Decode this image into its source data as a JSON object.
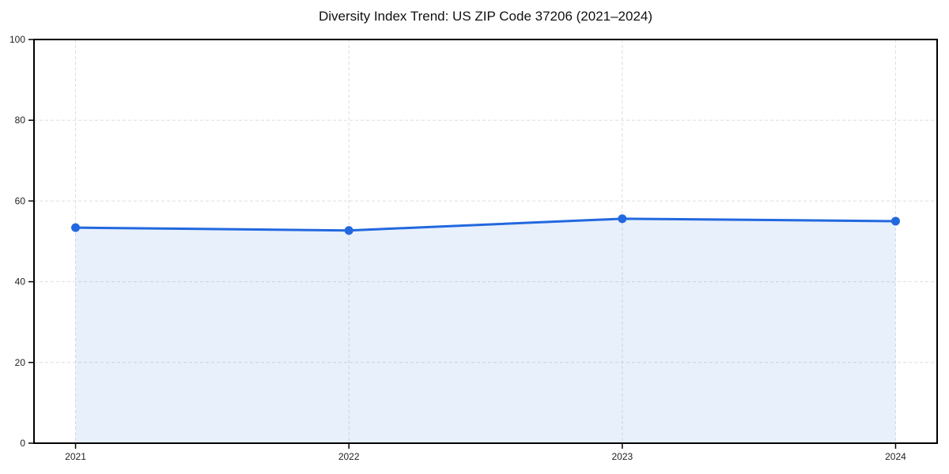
{
  "chart_data": {
    "type": "line",
    "title": "Diversity Index Trend: US ZIP Code 37206 (2021–2024)",
    "x": [
      "2021",
      "2022",
      "2023",
      "2024"
    ],
    "series": [
      {
        "name": "Diversity Index",
        "values": [
          53.4,
          52.7,
          55.6,
          55.0
        ]
      }
    ],
    "xlabel": "",
    "ylabel": "",
    "ylim": [
      0,
      100
    ],
    "yticks": [
      0,
      20,
      40,
      60,
      80,
      100
    ],
    "grid": "dashed-both-axes",
    "legend_position": "none",
    "area_fill": true,
    "marker": "circle",
    "colors": {
      "line": "#2268df",
      "fill": "#e9f0fc",
      "grid": "#dedede",
      "axis": "#000000",
      "tick_text": "#222222"
    }
  }
}
